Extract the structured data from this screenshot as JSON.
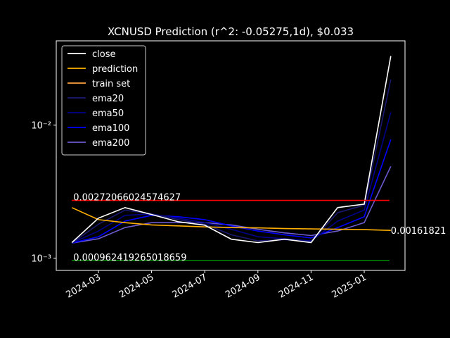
{
  "chart_data": {
    "type": "line",
    "title": "XCNUSD Prediction (r^2: -0.05275,1d), $0.033",
    "x": [
      "2024-02",
      "2024-03",
      "2024-04",
      "2024-05",
      "2024-06",
      "2024-07",
      "2024-08",
      "2024-09",
      "2024-10",
      "2024-11",
      "2024-12",
      "2025-01",
      "2025-02"
    ],
    "xticks": [
      "2024-03",
      "2024-05",
      "2024-07",
      "2024-09",
      "2024-11",
      "2025-01"
    ],
    "log_y": true,
    "ylim": [
      0.00081,
      0.043
    ],
    "yticks": [
      {
        "value": 0.001,
        "label": "10⁻³"
      },
      {
        "value": 0.01,
        "label": "10⁻²"
      }
    ],
    "legend": "upper left",
    "series": [
      {
        "name": "close",
        "color": "#ffffff",
        "values": [
          0.00131,
          0.002,
          0.0024,
          0.00213,
          0.00188,
          0.00177,
          0.00139,
          0.00131,
          0.00139,
          0.00131,
          0.0024,
          0.00255,
          0.033
        ]
      },
      {
        "name": "prediction",
        "color": "#ffb000",
        "values": [
          0.0024,
          0.00195,
          0.00185,
          0.00178,
          0.00175,
          0.00172,
          0.0017,
          0.00169,
          0.00167,
          0.00166,
          0.00165,
          0.00164,
          0.00161821
        ],
        "value_labels": [
          null,
          null,
          null,
          null,
          null,
          null,
          null,
          null,
          null,
          null,
          null,
          null,
          "0.00161821"
        ]
      },
      {
        "name": "train set",
        "color": "#ffa040",
        "values": [
          null,
          null,
          null,
          null,
          null,
          null,
          null,
          null,
          null,
          null,
          null,
          null,
          null
        ]
      },
      {
        "name": "ema20",
        "color": "#191970",
        "values": [
          0.0013,
          0.0018,
          0.0023,
          0.00215,
          0.00195,
          0.0018,
          0.0015,
          0.00135,
          0.00138,
          0.00133,
          0.0022,
          0.0025,
          0.022
        ]
      },
      {
        "name": "ema50",
        "color": "#00008b",
        "values": [
          0.0013,
          0.0016,
          0.0021,
          0.00215,
          0.002,
          0.00185,
          0.00165,
          0.00145,
          0.0014,
          0.00135,
          0.0019,
          0.0023,
          0.0125
        ]
      },
      {
        "name": "ema100",
        "color": "#0000ff",
        "values": [
          0.0013,
          0.00145,
          0.0019,
          0.0021,
          0.00205,
          0.00195,
          0.00175,
          0.0016,
          0.0015,
          0.00142,
          0.0017,
          0.00205,
          0.0078
        ]
      },
      {
        "name": "ema200",
        "color": "#6a5acd",
        "values": [
          0.0013,
          0.0014,
          0.0017,
          0.00185,
          0.00185,
          0.00185,
          0.00178,
          0.00165,
          0.00155,
          0.00148,
          0.0016,
          0.00185,
          0.0049
        ]
      }
    ],
    "hlines": [
      {
        "value": 0.00272066024574627,
        "label": "0.00272066024574627",
        "color": "#ff0000"
      },
      {
        "value": 0.000962419265018659,
        "label": "0.000962419265018659",
        "color": "#008000"
      }
    ]
  }
}
